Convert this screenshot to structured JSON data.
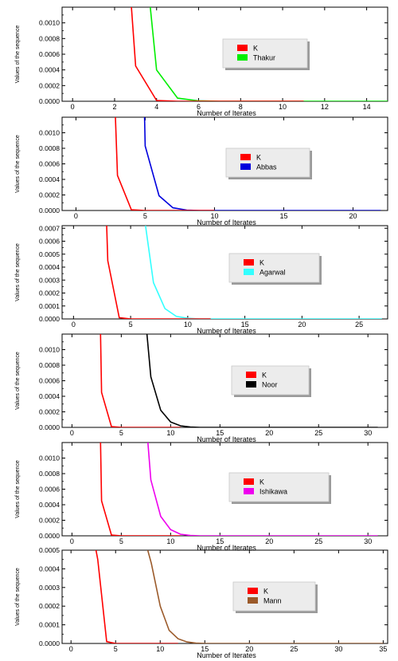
{
  "chart_data": [
    {
      "type": "line",
      "xlabel": "Number of Iterates",
      "ylabel": "Values of the sequence",
      "xlim": [
        -0.5,
        15
      ],
      "ylim": [
        0,
        0.0012
      ],
      "xticks": [
        0,
        2,
        4,
        6,
        8,
        10,
        12,
        14
      ],
      "yticks": [
        0,
        0.0002,
        0.0004,
        0.0006,
        0.0008,
        0.001
      ],
      "ytick_labels": [
        "0.0000",
        "0.0002",
        "0.0004",
        "0.0006",
        "0.0008",
        "0.0010"
      ],
      "grid": false,
      "legend_position": "right",
      "series": [
        {
          "name": "K",
          "color": "#ff0000",
          "x": [
            2.8,
            3,
            4,
            5,
            6,
            7,
            8,
            9,
            10,
            11
          ],
          "y": [
            0.0012,
            0.00045,
            1e-05,
            0,
            0,
            0,
            0,
            0,
            0,
            0
          ]
        },
        {
          "name": "Thakur",
          "color": "#00ee00",
          "x": [
            3.7,
            4,
            5,
            6,
            7,
            8,
            9,
            10,
            11,
            12,
            13,
            14,
            15
          ],
          "y": [
            0.0012,
            0.0004,
            4e-05,
            5e-06,
            0,
            0,
            0,
            0,
            0,
            0,
            0,
            0,
            0
          ]
        }
      ]
    },
    {
      "type": "line",
      "xlabel": "Number of Iterates",
      "ylabel": "Values of the sequence",
      "xlim": [
        -1,
        22.5
      ],
      "ylim": [
        0,
        0.0012
      ],
      "xticks": [
        0,
        5,
        10,
        15,
        20
      ],
      "yticks": [
        0,
        0.0002,
        0.0004,
        0.0006,
        0.0008,
        0.001
      ],
      "ytick_labels": [
        "0.0000",
        "0.0002",
        "0.0004",
        "0.0006",
        "0.0008",
        "0.0010"
      ],
      "grid": false,
      "legend_position": "right",
      "series": [
        {
          "name": "K",
          "color": "#ff0000",
          "x": [
            2.85,
            3,
            4,
            5,
            6,
            7,
            8,
            9,
            10
          ],
          "y": [
            0.0012,
            0.00045,
            1e-05,
            0,
            0,
            0,
            0,
            0,
            0
          ]
        },
        {
          "name": "Abbas",
          "color": "#0000dd",
          "x": [
            4.95,
            5,
            6,
            7,
            8,
            9,
            10,
            11,
            12,
            13,
            14,
            15,
            16,
            17,
            18,
            19,
            20,
            21,
            22
          ],
          "y": [
            0.0012,
            0.00083,
            0.00019,
            3.5e-05,
            5e-06,
            0,
            0,
            0,
            0,
            0,
            0,
            0,
            0,
            0,
            0,
            0,
            0,
            0,
            0
          ]
        }
      ]
    },
    {
      "type": "line",
      "xlabel": "Number of Iterates",
      "ylabel": "Values of the sequence",
      "xlim": [
        -1,
        27.5
      ],
      "ylim": [
        0,
        0.00072
      ],
      "xticks": [
        0,
        5,
        10,
        15,
        20,
        25
      ],
      "yticks": [
        0,
        0.0001,
        0.0002,
        0.0003,
        0.0004,
        0.0005,
        0.0006,
        0.0007
      ],
      "ytick_labels": [
        "0.0000",
        "0.0001",
        "0.0002",
        "0.0003",
        "0.0004",
        "0.0005",
        "0.0006",
        "0.0007"
      ],
      "grid": false,
      "legend_position": "right",
      "series": [
        {
          "name": "K",
          "color": "#ff0000",
          "x": [
            2.9,
            3,
            4,
            5,
            6,
            7,
            8,
            9,
            10,
            11,
            12
          ],
          "y": [
            0.00072,
            0.00045,
            1e-05,
            0,
            0,
            0,
            0,
            0,
            0,
            0,
            0
          ]
        },
        {
          "name": "Agarwal",
          "color": "#33ffff",
          "x": [
            6.3,
            7,
            8,
            9,
            10,
            11,
            12,
            13,
            14,
            15,
            16,
            17,
            18,
            19,
            20,
            21,
            22,
            23,
            24,
            25,
            26,
            27
          ],
          "y": [
            0.00072,
            0.00028,
            8e-05,
            2e-05,
            5e-06,
            0,
            0,
            0,
            0,
            0,
            0,
            0,
            0,
            0,
            0,
            0,
            0,
            0,
            0,
            0,
            0,
            0
          ]
        }
      ]
    },
    {
      "type": "line",
      "xlabel": "Number of Iterates",
      "ylabel": "Values of the sequence",
      "xlim": [
        -1,
        32
      ],
      "ylim": [
        0,
        0.0012
      ],
      "xticks": [
        0,
        5,
        10,
        15,
        20,
        25,
        30
      ],
      "yticks": [
        0,
        0.0002,
        0.0004,
        0.0006,
        0.0008,
        0.001
      ],
      "ytick_labels": [
        "0.0000",
        "0.0002",
        "0.0004",
        "0.0006",
        "0.0008",
        "0.0010"
      ],
      "grid": false,
      "legend_position": "right",
      "series": [
        {
          "name": "K",
          "color": "#ff0000",
          "x": [
            2.9,
            3,
            4,
            5,
            6,
            7,
            8,
            9,
            10,
            11
          ],
          "y": [
            0.0012,
            0.00045,
            1e-05,
            0,
            0,
            0,
            0,
            0,
            0,
            0
          ]
        },
        {
          "name": "Noor",
          "color": "#000000",
          "x": [
            7.6,
            8,
            9,
            10,
            11,
            12,
            13,
            14,
            15,
            16,
            17,
            18,
            19,
            20,
            21,
            22,
            23,
            24,
            25,
            26,
            27,
            28,
            29,
            30,
            31
          ],
          "y": [
            0.0012,
            0.00065,
            0.00022,
            7e-05,
            2e-05,
            5e-06,
            0,
            0,
            0,
            0,
            0,
            0,
            0,
            0,
            0,
            0,
            0,
            0,
            0,
            0,
            0,
            0,
            0,
            0,
            0
          ]
        }
      ]
    },
    {
      "type": "line",
      "xlabel": "Number of Iterates",
      "ylabel": "Values of the sequence",
      "xlim": [
        -1,
        32
      ],
      "ylim": [
        0,
        0.0012
      ],
      "xticks": [
        0,
        5,
        10,
        15,
        20,
        25,
        30
      ],
      "yticks": [
        0,
        0.0002,
        0.0004,
        0.0006,
        0.0008,
        0.001
      ],
      "ytick_labels": [
        "0.0000",
        "0.0002",
        "0.0004",
        "0.0006",
        "0.0008",
        "0.0010"
      ],
      "grid": false,
      "legend_position": "right",
      "series": [
        {
          "name": "K",
          "color": "#ff0000",
          "x": [
            2.9,
            3,
            4,
            5,
            6,
            7,
            8,
            9,
            10,
            11
          ],
          "y": [
            0.0012,
            0.00045,
            1e-05,
            0,
            0,
            0,
            0,
            0,
            0,
            0
          ]
        },
        {
          "name": "Ishikawa",
          "color": "#ee00ee",
          "x": [
            7.7,
            8,
            9,
            10,
            11,
            12,
            13,
            14,
            15,
            16,
            17,
            18,
            19,
            20,
            21,
            22,
            23,
            24,
            25,
            26,
            27,
            28,
            29,
            30,
            31
          ],
          "y": [
            0.0012,
            0.00072,
            0.00025,
            8e-05,
            2e-05,
            5e-06,
            0,
            0,
            0,
            0,
            0,
            0,
            0,
            0,
            0,
            0,
            0,
            0,
            0,
            0,
            0,
            0,
            0,
            0,
            0
          ]
        }
      ]
    },
    {
      "type": "line",
      "xlabel": "Number of Iterates",
      "ylabel": "Values of the sequence",
      "xlim": [
        -1,
        35.5
      ],
      "ylim": [
        0,
        0.0005
      ],
      "xticks": [
        0,
        5,
        10,
        15,
        20,
        25,
        30,
        35
      ],
      "yticks": [
        0,
        0.0001,
        0.0002,
        0.0003,
        0.0004,
        0.0005
      ],
      "ytick_labels": [
        "0.0000",
        "0.0001",
        "0.0002",
        "0.0003",
        "0.0004",
        "0.0005"
      ],
      "grid": false,
      "legend_position": "right",
      "series": [
        {
          "name": "K",
          "color": "#ff0000",
          "x": [
            2.8,
            3,
            4,
            5,
            6,
            7,
            8,
            9,
            10,
            11,
            12
          ],
          "y": [
            0.0005,
            0.00045,
            1e-05,
            0,
            0,
            0,
            0,
            0,
            0,
            0,
            0
          ]
        },
        {
          "name": "Mann",
          "color": "#9b5a2a",
          "x": [
            8.6,
            9,
            10,
            11,
            12,
            13,
            14,
            15,
            16,
            17,
            18,
            19,
            20,
            21,
            22,
            23,
            24,
            25,
            26,
            27,
            28,
            29,
            30,
            31,
            32,
            33,
            34,
            35
          ],
          "y": [
            0.0005,
            0.00043,
            0.0002,
            7e-05,
            2.5e-05,
            8e-06,
            2e-06,
            0,
            0,
            0,
            0,
            0,
            0,
            0,
            0,
            0,
            0,
            0,
            0,
            0,
            0,
            0,
            0,
            0,
            0,
            0,
            0,
            0
          ]
        }
      ]
    }
  ]
}
